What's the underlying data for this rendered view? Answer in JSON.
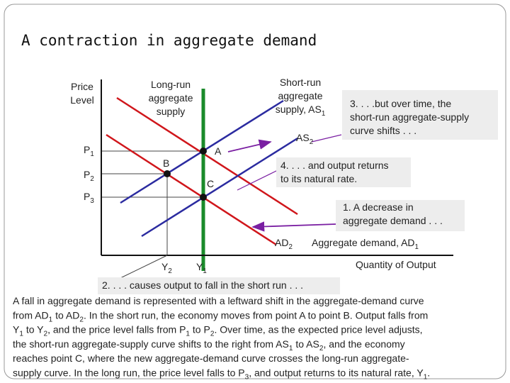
{
  "title": "A contraction in aggregate demand",
  "y_axis_label": [
    [
      "Price"
    ],
    [
      "Level"
    ]
  ],
  "x_axis_label": [
    [
      "Quantity of Output"
    ]
  ],
  "price_labels": [
    [
      [
        "P",
        "1"
      ]
    ],
    [
      [
        "P",
        "2"
      ]
    ],
    [
      [
        "P",
        "3"
      ]
    ]
  ],
  "output_labels": [
    [
      [
        "Y",
        "2"
      ]
    ],
    [
      [
        "Y",
        "1"
      ]
    ]
  ],
  "points": [
    [
      [
        "A"
      ]
    ],
    [
      [
        "B"
      ]
    ],
    [
      [
        "C"
      ]
    ]
  ],
  "curve_labels": {
    "long_run_supply": [
      [
        "Long-run"
      ],
      [
        "aggregate"
      ],
      [
        "supply"
      ]
    ],
    "short_run_supply": [
      [
        "Short-run"
      ],
      [
        "aggregate"
      ],
      [
        "supply, AS",
        "1"
      ]
    ],
    "as2": [
      [
        "AS",
        "2"
      ]
    ],
    "ad2": [
      [
        "AD",
        "2"
      ]
    ],
    "ad1": [
      [
        "Aggregate demand, AD",
        "1"
      ]
    ]
  },
  "annotations": [
    [
      [
        "1.  A decrease in"
      ],
      [
        "aggregate demand . . ."
      ]
    ],
    [
      [
        "2. . . . causes output to fall in the short run . . ."
      ]
    ],
    [
      [
        "3. . . .but over time, the"
      ],
      [
        "short-run aggregate-supply"
      ],
      [
        "curve shifts . . ."
      ]
    ],
    [
      [
        "4. . . . and output returns"
      ],
      [
        "to its natural rate."
      ]
    ]
  ],
  "paragraph": [
    [
      "A fall in aggregate demand is represented with a leftward shift in the aggregate-demand curve"
    ],
    [
      "from AD",
      "1",
      " to AD",
      "2",
      ". In the short run, the economy moves from point A to point B. Output falls from"
    ],
    [
      "Y",
      "1",
      " to Y",
      "2",
      ", and the price level falls from P",
      "1",
      " to P",
      "2",
      ". Over time, as the expected price level adjusts,"
    ],
    [
      "the short-run aggregate-supply curve shifts to the right from AS",
      "1",
      " to AS",
      "2",
      ", and the economy"
    ],
    [
      "reaches point C, where the new aggregate-demand curve crosses the long-run aggregate-"
    ],
    [
      "supply curve. In the long run, the price level falls to P",
      "3",
      ", and output returns to its natural rate, Y",
      "1",
      "."
    ]
  ]
}
